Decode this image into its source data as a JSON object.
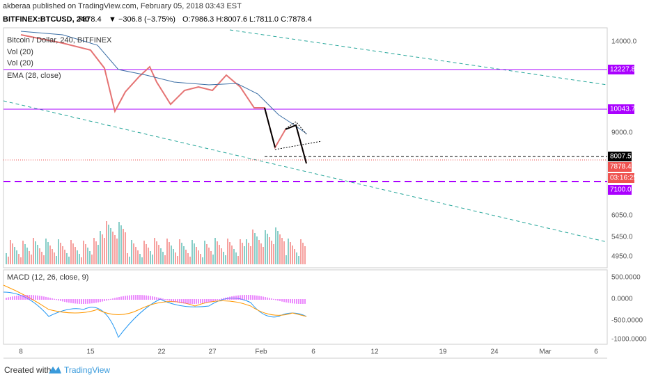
{
  "header": {
    "publisher": "akberaa published on TradingView.com, February 05, 2018 03:43 EST",
    "symbol": "BITFINEX:BTCUSD, 240",
    "last": "7878.4",
    "change": "▼ −306.8 (−3.75%)",
    "ohlc": "O:7986.3 H:8007.6 L:7811.0 C:7878.4"
  },
  "legend": {
    "main": "Bitcoin / Dollar, 240, BITFINEX",
    "vol1": "Vol (20)",
    "vol2": "Vol (20)",
    "ema": "EMA (28, close)",
    "macd": "MACD (12, 26, close, 9)"
  },
  "price_axis": [
    "14000.0",
    "9000.0",
    "6050.0",
    "5450.0",
    "4950.0"
  ],
  "price_tags": {
    "level1": "12227.8",
    "level2": "10043.7",
    "bid": "8007.5",
    "last": "7878.4",
    "timer": "03:16:25",
    "level3": "7100.0"
  },
  "macd_axis": [
    "500.0000",
    "0.0000",
    "-500.0000",
    "-1000.0000"
  ],
  "date_axis": [
    "8",
    "15",
    "22",
    "27",
    "Feb",
    "6",
    "12",
    "19",
    "24",
    "Mar",
    "6"
  ],
  "footer": {
    "created": "Created with",
    "brand": "TradingView"
  }
}
